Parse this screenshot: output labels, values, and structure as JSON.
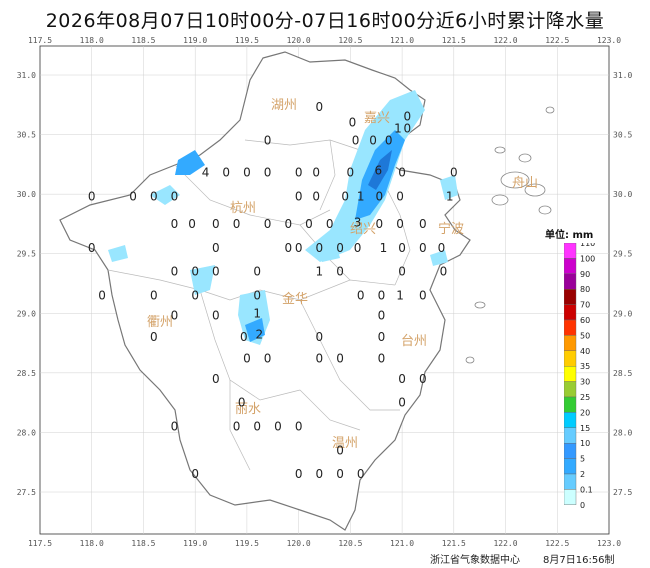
{
  "title": "2026年08月07日10时00分-07日16时00分近6小时累计降水量",
  "axes": {
    "lon_ticks": [
      "117.5",
      "118.0",
      "118.5",
      "119.0",
      "119.5",
      "120.0",
      "120.5",
      "121.0",
      "121.5",
      "122.0",
      "122.5",
      "123.0"
    ],
    "lat_ticks": [
      "31.0",
      "30.5",
      "30.0",
      "29.5",
      "29.0",
      "28.5",
      "28.0",
      "27.5"
    ]
  },
  "cities": [
    "湖州",
    "嘉兴",
    "舟山",
    "杭州",
    "绍兴",
    "宁波",
    "金华",
    "衢州",
    "台州",
    "丽水",
    "温州"
  ],
  "stations": [
    {
      "lon": 120.96,
      "lat": 30.55,
      "v": "1"
    },
    {
      "lon": 121.05,
      "lat": 30.65,
      "v": "0"
    },
    {
      "lon": 121.05,
      "lat": 30.55,
      "v": "0"
    },
    {
      "lon": 120.2,
      "lat": 30.73,
      "v": "0"
    },
    {
      "lon": 120.52,
      "lat": 30.6,
      "v": "0"
    },
    {
      "lon": 119.7,
      "lat": 30.45,
      "v": "0"
    },
    {
      "lon": 120.55,
      "lat": 30.45,
      "v": "0"
    },
    {
      "lon": 120.72,
      "lat": 30.45,
      "v": "0"
    },
    {
      "lon": 120.87,
      "lat": 30.45,
      "v": "0"
    },
    {
      "lon": 119.1,
      "lat": 30.18,
      "v": "4"
    },
    {
      "lon": 119.3,
      "lat": 30.18,
      "v": "0"
    },
    {
      "lon": 119.5,
      "lat": 30.18,
      "v": "0"
    },
    {
      "lon": 119.7,
      "lat": 30.18,
      "v": "0"
    },
    {
      "lon": 120.0,
      "lat": 30.18,
      "v": "0"
    },
    {
      "lon": 120.17,
      "lat": 30.18,
      "v": "0"
    },
    {
      "lon": 120.5,
      "lat": 30.18,
      "v": "0"
    },
    {
      "lon": 120.77,
      "lat": 30.2,
      "v": "6"
    },
    {
      "lon": 121.0,
      "lat": 30.18,
      "v": "0"
    },
    {
      "lon": 121.5,
      "lat": 30.18,
      "v": "0"
    },
    {
      "lon": 118.0,
      "lat": 29.98,
      "v": "0"
    },
    {
      "lon": 118.4,
      "lat": 29.98,
      "v": "0"
    },
    {
      "lon": 118.6,
      "lat": 29.98,
      "v": "0"
    },
    {
      "lon": 118.8,
      "lat": 29.98,
      "v": "0"
    },
    {
      "lon": 120.0,
      "lat": 29.98,
      "v": "0"
    },
    {
      "lon": 120.17,
      "lat": 29.98,
      "v": "0"
    },
    {
      "lon": 120.45,
      "lat": 29.98,
      "v": "0"
    },
    {
      "lon": 120.6,
      "lat": 29.98,
      "v": "1"
    },
    {
      "lon": 120.78,
      "lat": 29.98,
      "v": "0"
    },
    {
      "lon": 120.98,
      "lat": 29.98,
      "v": "0"
    },
    {
      "lon": 121.46,
      "lat": 29.98,
      "v": "1"
    },
    {
      "lon": 118.8,
      "lat": 29.75,
      "v": "0"
    },
    {
      "lon": 118.97,
      "lat": 29.75,
      "v": "0"
    },
    {
      "lon": 119.2,
      "lat": 29.75,
      "v": "0"
    },
    {
      "lon": 119.4,
      "lat": 29.75,
      "v": "0"
    },
    {
      "lon": 119.7,
      "lat": 29.75,
      "v": "0"
    },
    {
      "lon": 119.9,
      "lat": 29.75,
      "v": "0"
    },
    {
      "lon": 120.1,
      "lat": 29.75,
      "v": "0"
    },
    {
      "lon": 120.3,
      "lat": 29.75,
      "v": "0"
    },
    {
      "lon": 120.57,
      "lat": 29.76,
      "v": "3"
    },
    {
      "lon": 120.78,
      "lat": 29.75,
      "v": "0"
    },
    {
      "lon": 120.98,
      "lat": 29.75,
      "v": "0"
    },
    {
      "lon": 121.2,
      "lat": 29.75,
      "v": "0"
    },
    {
      "lon": 118.0,
      "lat": 29.55,
      "v": "0"
    },
    {
      "lon": 119.2,
      "lat": 29.55,
      "v": "0"
    },
    {
      "lon": 119.9,
      "lat": 29.55,
      "v": "0"
    },
    {
      "lon": 120.0,
      "lat": 29.55,
      "v": "0"
    },
    {
      "lon": 120.2,
      "lat": 29.55,
      "v": "0"
    },
    {
      "lon": 120.4,
      "lat": 29.55,
      "v": "0"
    },
    {
      "lon": 120.57,
      "lat": 29.55,
      "v": "0"
    },
    {
      "lon": 120.82,
      "lat": 29.55,
      "v": "1"
    },
    {
      "lon": 121.0,
      "lat": 29.55,
      "v": "0"
    },
    {
      "lon": 121.2,
      "lat": 29.55,
      "v": "0"
    },
    {
      "lon": 121.38,
      "lat": 29.55,
      "v": "0"
    },
    {
      "lon": 118.8,
      "lat": 29.35,
      "v": "0"
    },
    {
      "lon": 119.0,
      "lat": 29.35,
      "v": "0"
    },
    {
      "lon": 119.2,
      "lat": 29.35,
      "v": "0"
    },
    {
      "lon": 119.6,
      "lat": 29.35,
      "v": "0"
    },
    {
      "lon": 120.2,
      "lat": 29.35,
      "v": "1"
    },
    {
      "lon": 120.4,
      "lat": 29.35,
      "v": "0"
    },
    {
      "lon": 121.0,
      "lat": 29.35,
      "v": "0"
    },
    {
      "lon": 121.4,
      "lat": 29.35,
      "v": "0"
    },
    {
      "lon": 118.1,
      "lat": 29.15,
      "v": "0"
    },
    {
      "lon": 118.6,
      "lat": 29.15,
      "v": "0"
    },
    {
      "lon": 119.0,
      "lat": 29.15,
      "v": "0"
    },
    {
      "lon": 119.6,
      "lat": 29.15,
      "v": "0"
    },
    {
      "lon": 120.6,
      "lat": 29.15,
      "v": "0"
    },
    {
      "lon": 120.8,
      "lat": 29.15,
      "v": "0"
    },
    {
      "lon": 120.98,
      "lat": 29.15,
      "v": "1"
    },
    {
      "lon": 121.2,
      "lat": 29.15,
      "v": "0"
    },
    {
      "lon": 118.8,
      "lat": 28.98,
      "v": "0"
    },
    {
      "lon": 119.2,
      "lat": 28.98,
      "v": "0"
    },
    {
      "lon": 119.6,
      "lat": 29.0,
      "v": "1"
    },
    {
      "lon": 120.8,
      "lat": 28.98,
      "v": "0"
    },
    {
      "lon": 118.6,
      "lat": 28.8,
      "v": "0"
    },
    {
      "lon": 119.47,
      "lat": 28.8,
      "v": "0"
    },
    {
      "lon": 119.62,
      "lat": 28.82,
      "v": "2"
    },
    {
      "lon": 120.2,
      "lat": 28.8,
      "v": "0"
    },
    {
      "lon": 120.8,
      "lat": 28.8,
      "v": "0"
    },
    {
      "lon": 119.5,
      "lat": 28.62,
      "v": "0"
    },
    {
      "lon": 119.7,
      "lat": 28.62,
      "v": "0"
    },
    {
      "lon": 120.2,
      "lat": 28.62,
      "v": "0"
    },
    {
      "lon": 120.4,
      "lat": 28.62,
      "v": "0"
    },
    {
      "lon": 120.8,
      "lat": 28.62,
      "v": "0"
    },
    {
      "lon": 119.2,
      "lat": 28.45,
      "v": "0"
    },
    {
      "lon": 121.0,
      "lat": 28.45,
      "v": "0"
    },
    {
      "lon": 121.2,
      "lat": 28.45,
      "v": "0"
    },
    {
      "lon": 119.45,
      "lat": 28.25,
      "v": "0"
    },
    {
      "lon": 121.0,
      "lat": 28.25,
      "v": "0"
    },
    {
      "lon": 118.8,
      "lat": 28.05,
      "v": "0"
    },
    {
      "lon": 119.4,
      "lat": 28.05,
      "v": "0"
    },
    {
      "lon": 119.6,
      "lat": 28.05,
      "v": "0"
    },
    {
      "lon": 119.8,
      "lat": 28.05,
      "v": "0"
    },
    {
      "lon": 120.0,
      "lat": 28.05,
      "v": "0"
    },
    {
      "lon": 120.4,
      "lat": 27.85,
      "v": "0"
    },
    {
      "lon": 119.0,
      "lat": 27.65,
      "v": "0"
    },
    {
      "lon": 120.0,
      "lat": 27.65,
      "v": "0"
    },
    {
      "lon": 120.2,
      "lat": 27.65,
      "v": "0"
    },
    {
      "lon": 120.4,
      "lat": 27.65,
      "v": "0"
    },
    {
      "lon": 120.6,
      "lat": 27.65,
      "v": "0"
    }
  ],
  "legend": {
    "title": "单位: mm",
    "levels": [
      "110",
      "100",
      "90",
      "80",
      "70",
      "60",
      "50",
      "40",
      "35",
      "30",
      "25",
      "20",
      "15",
      "10",
      "5",
      "2",
      "0.1",
      "0"
    ],
    "colors": [
      "#ff33ff",
      "#cc00cc",
      "#990099",
      "#990000",
      "#cc0000",
      "#ff3300",
      "#ff9900",
      "#ffcc00",
      "#ffff00",
      "#99cc33",
      "#33cc33",
      "#00ccff",
      "#66ccff",
      "#3399ff",
      "#33aaff",
      "#66ccff",
      "#ccffff",
      "#ffffff"
    ]
  },
  "footer": {
    "org": "浙江省气象数据中心",
    "time": "8月7日16:56制"
  }
}
